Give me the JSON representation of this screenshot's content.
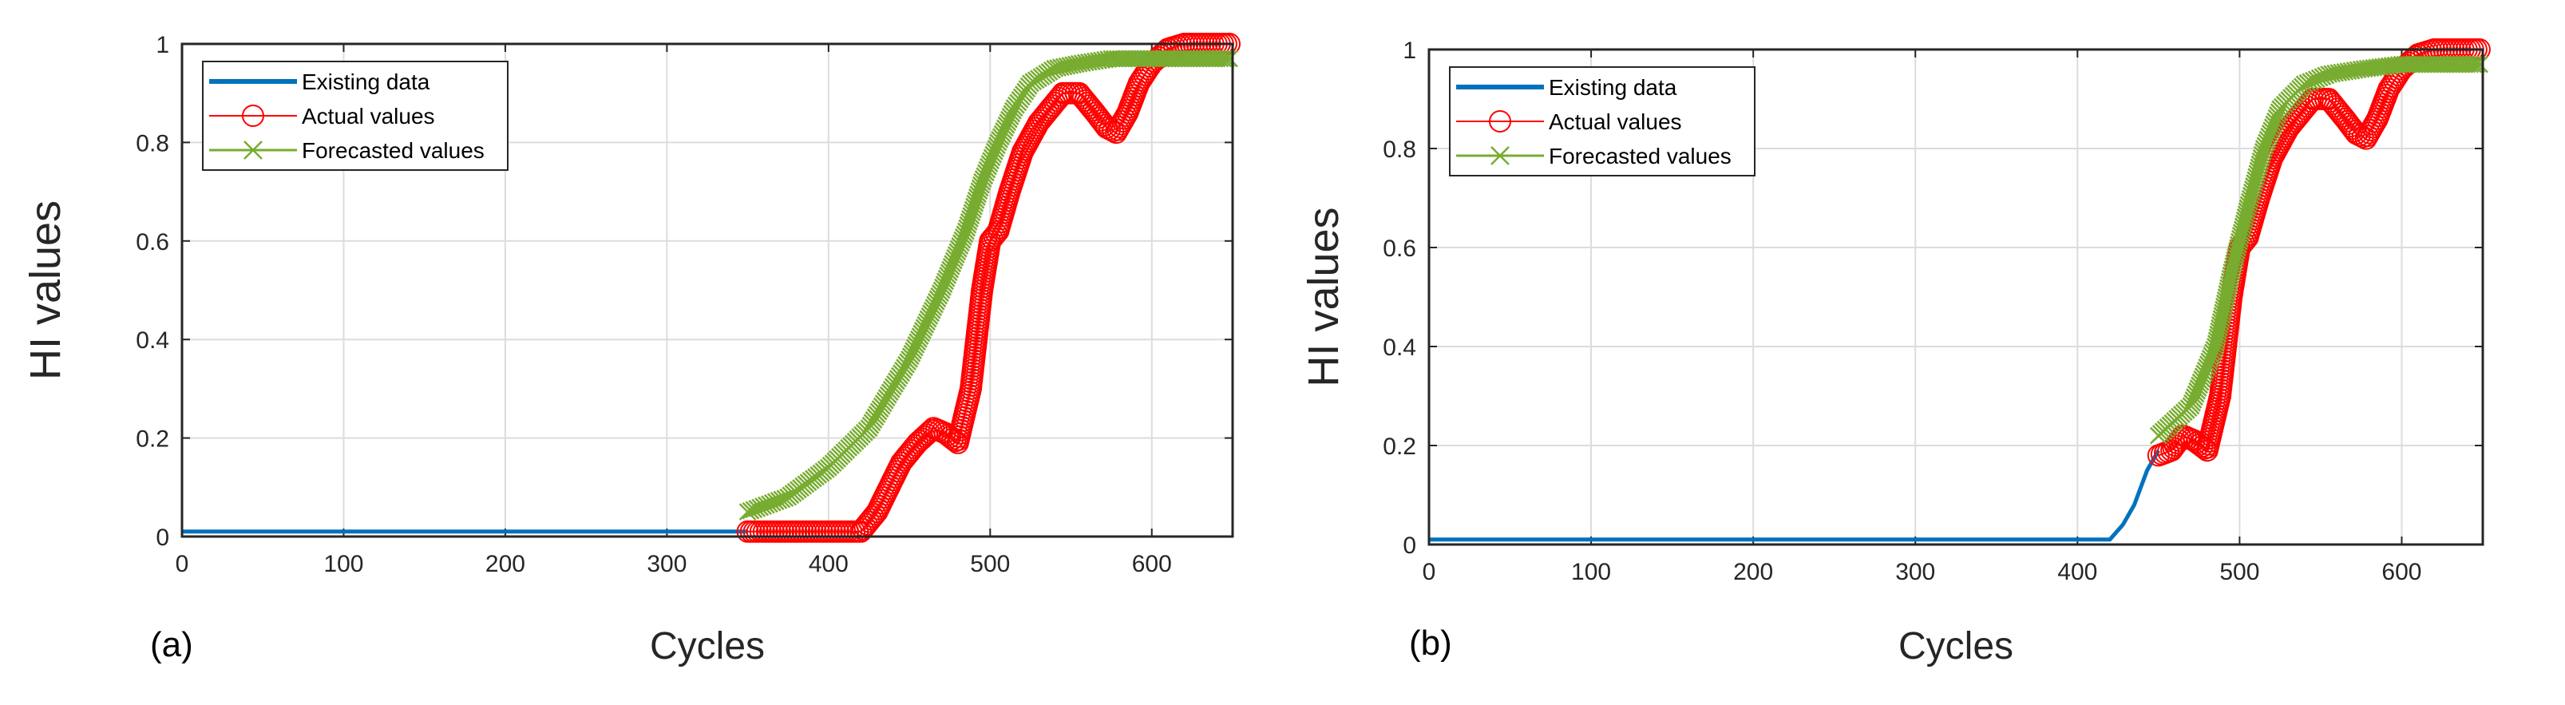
{
  "chart_data": [
    {
      "type": "line",
      "panel_label": "(a)",
      "xlabel": "Cycles",
      "ylabel": "HI values",
      "xlim": [
        0,
        650
      ],
      "ylim": [
        0,
        1
      ],
      "xticks": [
        "0",
        "100",
        "200",
        "300",
        "400",
        "500",
        "600"
      ],
      "yticks": [
        "0",
        "0.2",
        "0.4",
        "0.6",
        "0.8",
        "1"
      ],
      "grid": true,
      "legend": {
        "location": "top-left",
        "entries": [
          "Existing data",
          "Actual values",
          "Forecasted values"
        ]
      },
      "series": [
        {
          "name": "Existing data",
          "style": "line",
          "color": "#0072BD",
          "x": [
            0,
            350
          ],
          "y": [
            0.01,
            0.01
          ]
        },
        {
          "name": "Actual values",
          "style": "circle-marker-line",
          "color": "#FF0000",
          "x": [
            350,
            420,
            430,
            445,
            455,
            465,
            472,
            480,
            488,
            495,
            500,
            505,
            512,
            520,
            530,
            545,
            555,
            565,
            572,
            578,
            585,
            592,
            600,
            610,
            620,
            650
          ],
          "y": [
            0.01,
            0.01,
            0.05,
            0.15,
            0.19,
            0.22,
            0.21,
            0.19,
            0.3,
            0.5,
            0.6,
            0.62,
            0.7,
            0.78,
            0.84,
            0.9,
            0.9,
            0.86,
            0.83,
            0.82,
            0.86,
            0.92,
            0.96,
            0.99,
            1.0,
            1.0
          ]
        },
        {
          "name": "Forecasted values",
          "style": "x-marker-line",
          "color": "#77AC30",
          "x": [
            350,
            375,
            400,
            425,
            450,
            470,
            485,
            495,
            505,
            515,
            525,
            540,
            555,
            575,
            600,
            625,
            650
          ],
          "y": [
            0.05,
            0.08,
            0.14,
            0.22,
            0.36,
            0.5,
            0.62,
            0.72,
            0.8,
            0.87,
            0.92,
            0.95,
            0.96,
            0.97,
            0.97,
            0.97,
            0.97
          ]
        }
      ]
    },
    {
      "type": "line",
      "panel_label": "(b)",
      "xlabel": "Cycles",
      "ylabel": "HI values",
      "xlim": [
        0,
        650
      ],
      "ylim": [
        0,
        1
      ],
      "xticks": [
        "0",
        "100",
        "200",
        "300",
        "400",
        "500",
        "600"
      ],
      "yticks": [
        "0",
        "0.2",
        "0.4",
        "0.6",
        "0.8",
        "1"
      ],
      "grid": true,
      "legend": {
        "location": "top-left",
        "entries": [
          "Existing data",
          "Actual values",
          "Forecasted values"
        ]
      },
      "series": [
        {
          "name": "Existing data",
          "style": "line",
          "color": "#0072BD",
          "x": [
            0,
            420,
            428,
            435,
            443,
            450
          ],
          "y": [
            0.01,
            0.01,
            0.04,
            0.08,
            0.15,
            0.19
          ]
        },
        {
          "name": "Actual values",
          "style": "circle-marker-line",
          "color": "#FF0000",
          "x": [
            450,
            458,
            465,
            472,
            480,
            488,
            495,
            500,
            505,
            512,
            520,
            530,
            545,
            555,
            565,
            572,
            578,
            585,
            592,
            600,
            610,
            620,
            650
          ],
          "y": [
            0.18,
            0.19,
            0.22,
            0.21,
            0.19,
            0.3,
            0.5,
            0.6,
            0.62,
            0.7,
            0.78,
            0.84,
            0.9,
            0.9,
            0.86,
            0.83,
            0.82,
            0.86,
            0.92,
            0.96,
            0.99,
            1.0,
            1.0
          ]
        },
        {
          "name": "Forecasted values",
          "style": "x-marker-line",
          "color": "#77AC30",
          "x": [
            450,
            470,
            485,
            495,
            505,
            515,
            525,
            540,
            555,
            575,
            600,
            625,
            650
          ],
          "y": [
            0.22,
            0.28,
            0.4,
            0.55,
            0.68,
            0.8,
            0.88,
            0.93,
            0.95,
            0.96,
            0.97,
            0.97,
            0.97
          ]
        }
      ]
    }
  ]
}
